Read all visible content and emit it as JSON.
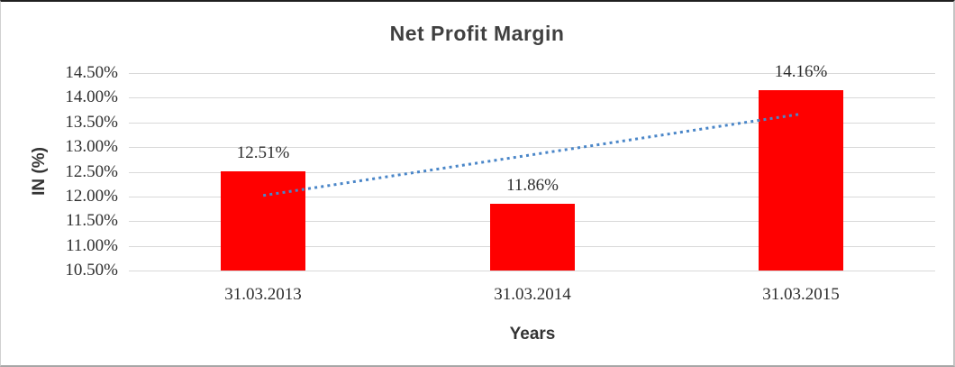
{
  "chart_data": {
    "type": "bar",
    "title": "Net Profit Margin",
    "xlabel": "Years",
    "ylabel": "IN (%)",
    "categories": [
      "31.03.2013",
      "31.03.2014",
      "31.03.2015"
    ],
    "values": [
      12.51,
      11.86,
      14.16
    ],
    "data_labels": [
      "12.51%",
      "11.86%",
      "14.16%"
    ],
    "ylim": [
      10.5,
      14.5
    ],
    "ytick_step": 0.5,
    "yticks": [
      {
        "value": 14.5,
        "label": "14.50%"
      },
      {
        "value": 14.0,
        "label": "14.00%"
      },
      {
        "value": 13.5,
        "label": "13.50%"
      },
      {
        "value": 13.0,
        "label": "13.00%"
      },
      {
        "value": 12.5,
        "label": "12.50%"
      },
      {
        "value": 12.0,
        "label": "12.00%"
      },
      {
        "value": 11.5,
        "label": "11.50%"
      },
      {
        "value": 11.0,
        "label": "11.00%"
      },
      {
        "value": 10.5,
        "label": "10.50%"
      }
    ],
    "grid": true,
    "legend": "none",
    "colors": {
      "bar": "#ff0000",
      "gridline": "#d9d9d9",
      "trendline": "#4a86c8",
      "title_text": "#404040",
      "label_text": "#2e2e2e"
    },
    "trendline": {
      "type": "linear",
      "style": "dotted",
      "start_category_index": 0,
      "end_category_index": 2,
      "start_value": 12.02,
      "end_value": 13.67
    }
  }
}
